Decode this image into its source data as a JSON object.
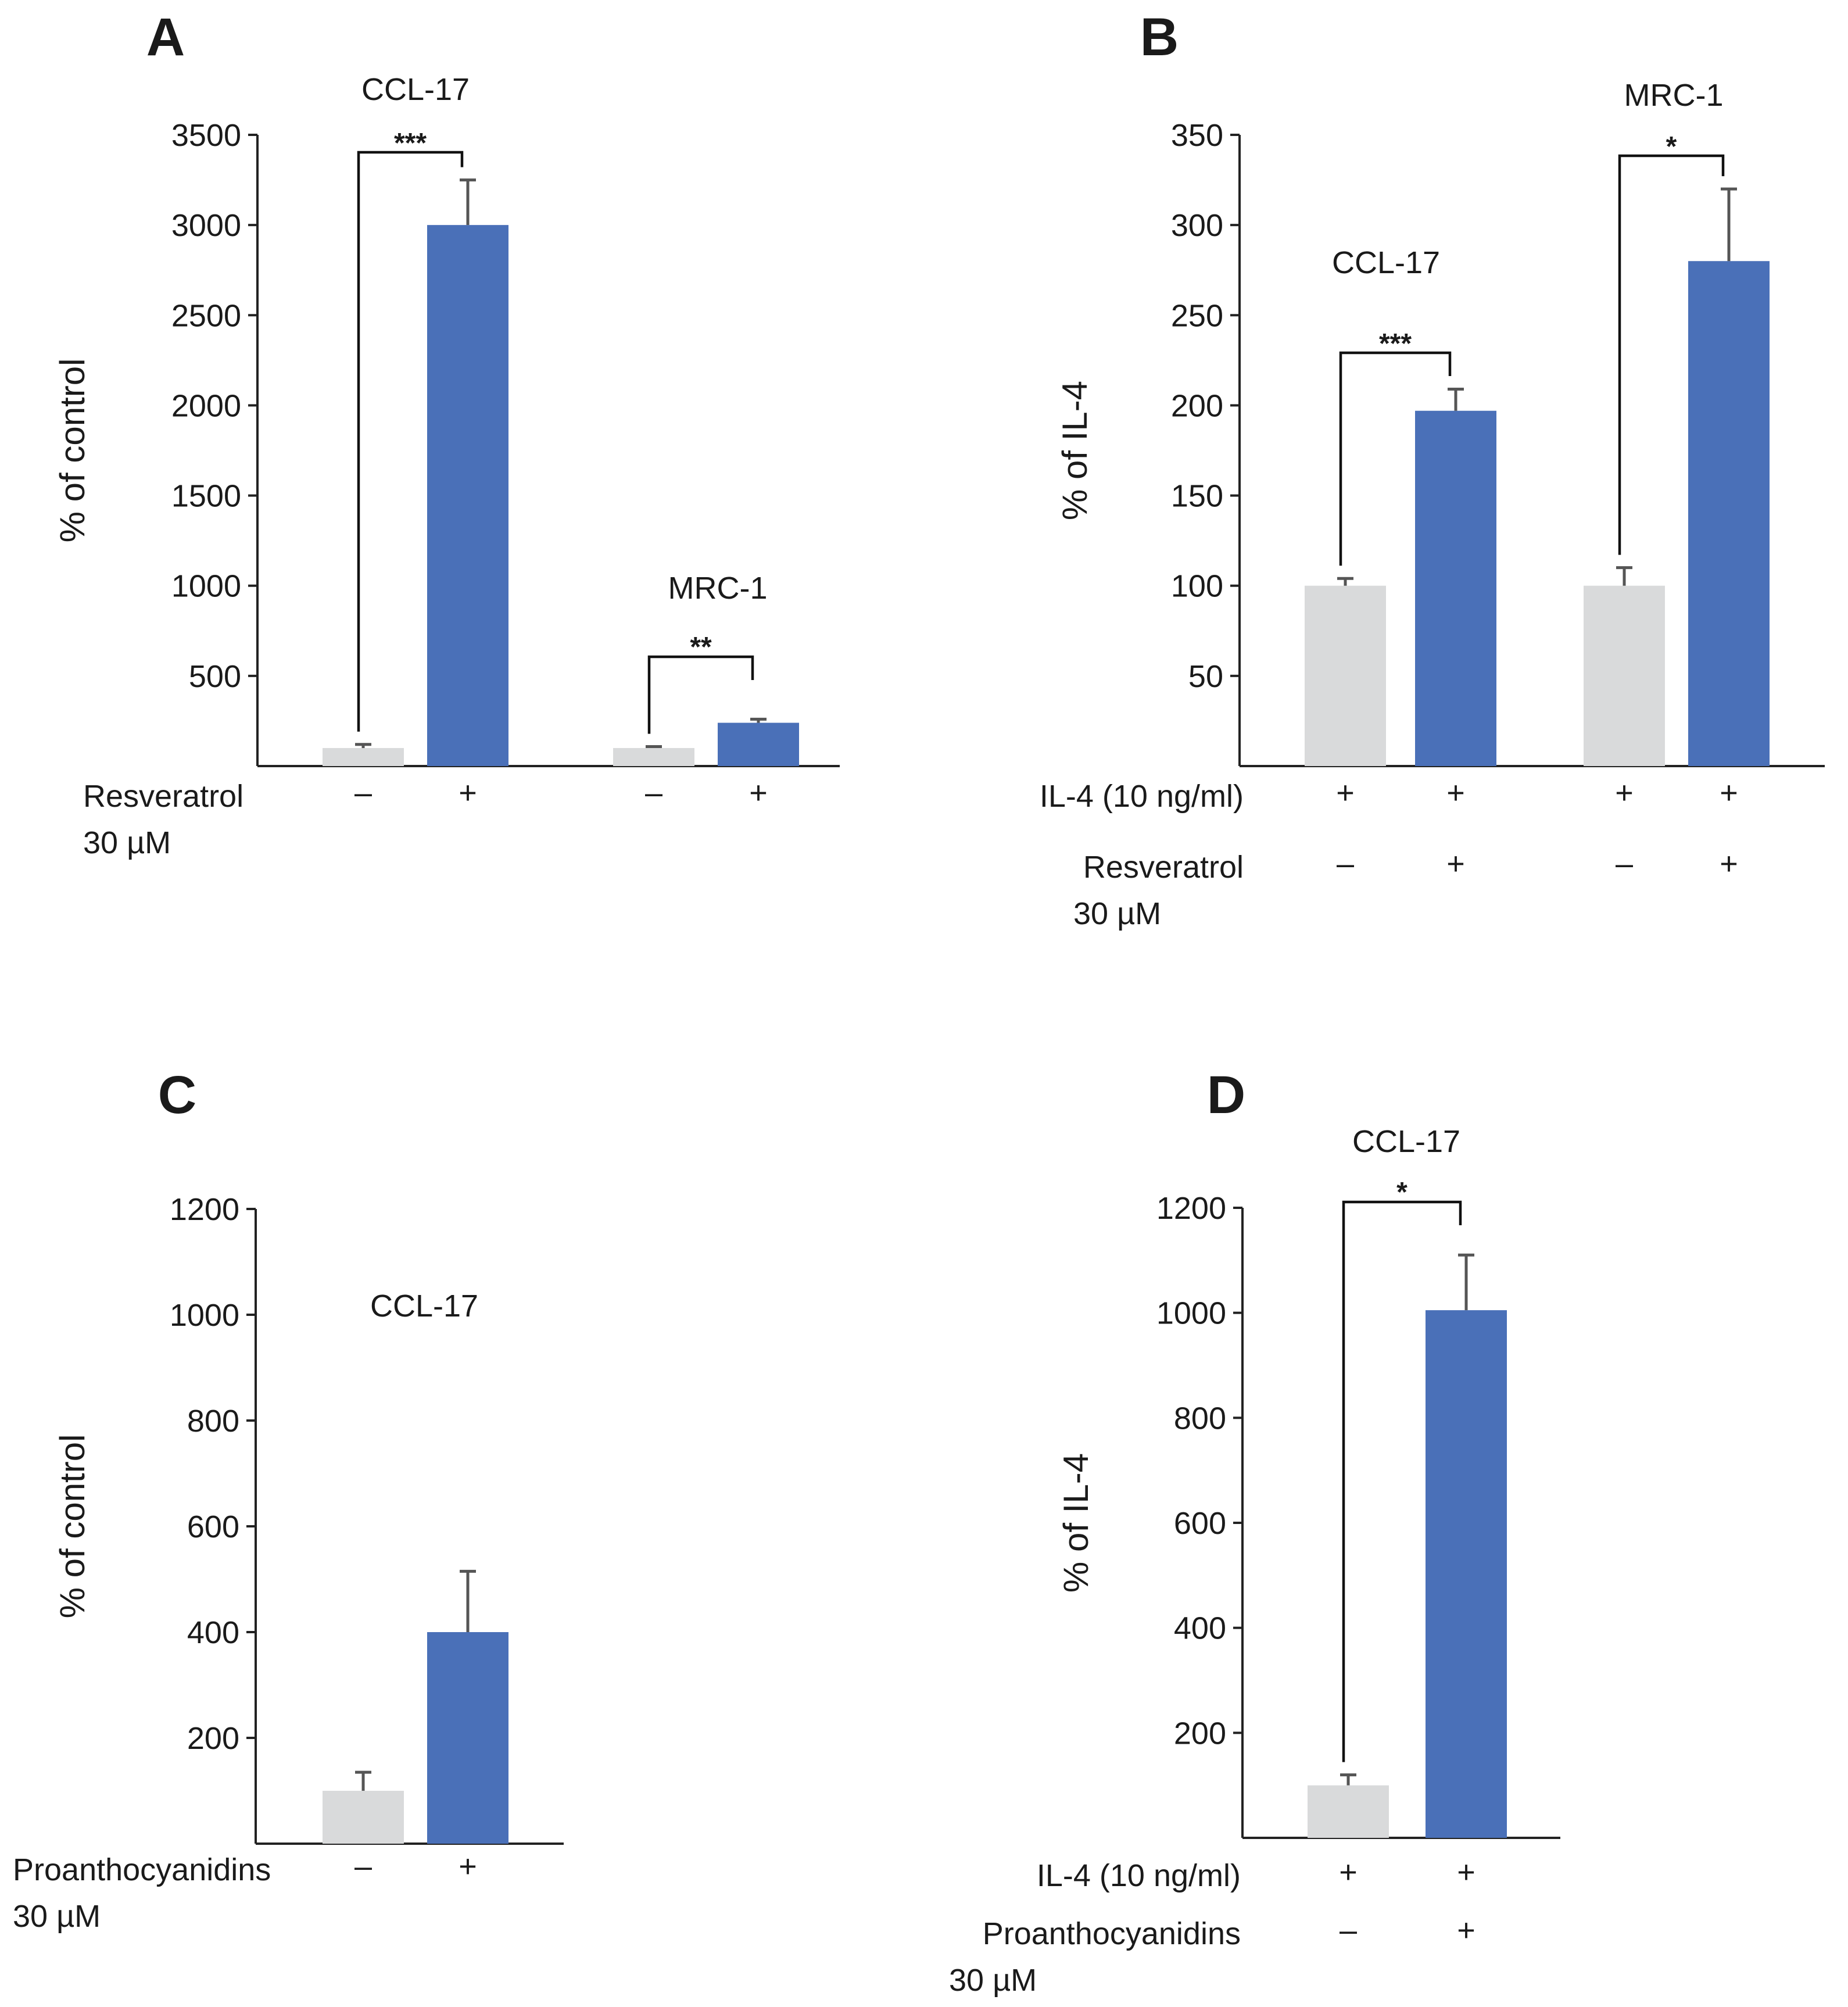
{
  "figure": {
    "colors": {
      "control": "#d9dadb",
      "treated": "#4a70b8",
      "axis": "#222222"
    }
  },
  "chart_data": [
    {
      "panel": "A",
      "type": "bar",
      "ylabel": "% of control",
      "ylim": [
        0,
        3500
      ],
      "yticks": [
        500,
        1000,
        1500,
        2000,
        2500,
        3000,
        3500
      ],
      "groups": [
        {
          "name": "CCL-17",
          "values": [
            100,
            3000
          ],
          "errors": [
            20,
            250
          ],
          "significance": "***"
        },
        {
          "name": "MRC-1",
          "values": [
            100,
            240
          ],
          "errors": [
            8,
            20
          ],
          "significance": "**"
        }
      ],
      "conditions": [
        {
          "label_lines": [
            "Resveratrol",
            "30 µM"
          ],
          "marks": [
            "–",
            "+",
            "–",
            "+"
          ]
        }
      ]
    },
    {
      "panel": "B",
      "type": "bar",
      "ylabel": "% of IL-4",
      "ylim": [
        0,
        350
      ],
      "yticks": [
        50,
        100,
        150,
        200,
        250,
        300,
        350
      ],
      "groups": [
        {
          "name": "CCL-17",
          "values": [
            100,
            197
          ],
          "errors": [
            4,
            12
          ],
          "significance": "***"
        },
        {
          "name": "MRC-1",
          "values": [
            100,
            280
          ],
          "errors": [
            10,
            40
          ],
          "significance": "*"
        }
      ],
      "conditions": [
        {
          "label_lines": [
            "IL-4 (10 ng/ml)"
          ],
          "marks": [
            "+",
            "+",
            "+",
            "+"
          ]
        },
        {
          "label_lines": [
            "Resveratrol",
            "30 µM"
          ],
          "marks": [
            "–",
            "+",
            "–",
            "+"
          ]
        }
      ]
    },
    {
      "panel": "C",
      "type": "bar",
      "ylabel": "% of control",
      "ylim": [
        0,
        1200
      ],
      "yticks": [
        200,
        400,
        600,
        800,
        1000,
        1200
      ],
      "groups": [
        {
          "name": "CCL-17",
          "values": [
            100,
            400
          ],
          "errors": [
            35,
            115
          ],
          "significance": ""
        }
      ],
      "conditions": [
        {
          "label_lines": [
            "Proanthocyanidins",
            "30 µM"
          ],
          "marks": [
            "–",
            "+"
          ]
        }
      ]
    },
    {
      "panel": "D",
      "type": "bar",
      "ylabel": "% of IL-4",
      "ylim": [
        0,
        1200
      ],
      "yticks": [
        200,
        400,
        600,
        800,
        1000,
        1200
      ],
      "groups": [
        {
          "name": "CCL-17",
          "values": [
            100,
            1005
          ],
          "errors": [
            20,
            105
          ],
          "significance": "*"
        }
      ],
      "conditions": [
        {
          "label_lines": [
            "IL-4 (10 ng/ml)"
          ],
          "marks": [
            "+",
            "+"
          ]
        },
        {
          "label_lines": [
            "Proanthocyanidins",
            "30 µM"
          ],
          "marks": [
            "–",
            "+"
          ]
        }
      ]
    }
  ]
}
